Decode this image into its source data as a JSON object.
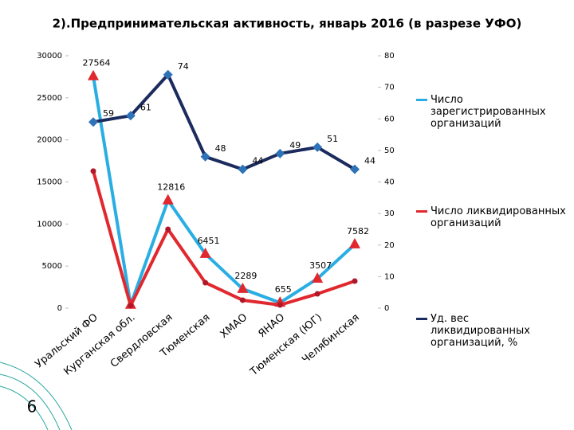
{
  "slide_number": "6",
  "chart_data": {
    "type": "line",
    "title": "2).Предпринимательская активность, январь 2016 (в разрезе УФО)",
    "categories": [
      "Уральский ФО",
      "Курганская обл.",
      "Свердловская",
      "Тюменская",
      "ХМАО",
      "ЯНАО",
      "Тюменская (ЮГ)",
      "Челябинская"
    ],
    "series": [
      {
        "name": "Число зарегистрированных организаций",
        "color": "#29aee3",
        "marker": "triangle",
        "marker_color": "#e0282e",
        "values": [
          27564,
          400,
          12816,
          6451,
          2289,
          655,
          3507,
          7582
        ],
        "value_labels": [
          "27564",
          null,
          "12816",
          "6451",
          "2289",
          "655",
          "3507",
          "7582"
        ]
      },
      {
        "name": "Число ликвидированных организаций",
        "color": "#e0282e",
        "marker": "circle",
        "marker_color": "#b0182a",
        "values": [
          16290,
          300,
          9375,
          3030,
          950,
          380,
          1700,
          3220
        ]
      },
      {
        "name": "Уд. вес ликвидированных организаций, %",
        "color": "#1c2b5e",
        "marker": "diamond",
        "marker_color": "#2e72b8",
        "axis": "y2",
        "values": [
          59,
          61,
          74,
          48,
          44,
          49,
          51,
          44
        ],
        "value_labels": [
          "59",
          "61",
          "74",
          "48",
          "44",
          "49",
          "51",
          "44"
        ]
      }
    ],
    "ylim": [
      0,
      30000
    ],
    "yticks": [
      0,
      5000,
      10000,
      15000,
      20000,
      25000,
      30000
    ],
    "y2lim": [
      0,
      80
    ],
    "y2ticks": [
      0,
      10,
      20,
      30,
      40,
      50,
      60,
      70,
      80
    ]
  }
}
